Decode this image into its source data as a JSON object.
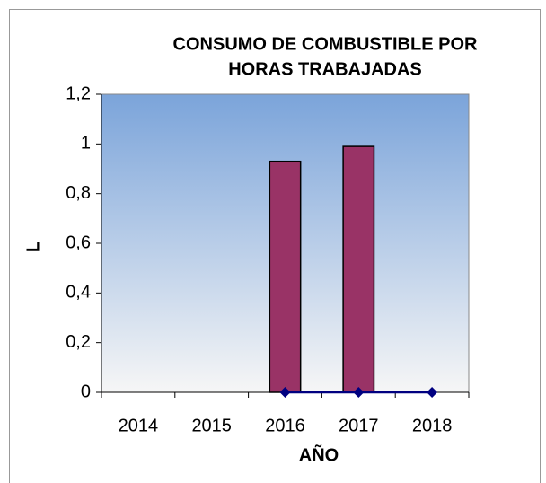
{
  "chart_data": {
    "type": "bar",
    "title": [
      "CONSUMO DE COMBUSTIBLE POR",
      "HORAS TRABAJADAS"
    ],
    "x_label": "AÑO",
    "y_label": "L",
    "categories": [
      "2014",
      "2015",
      "2016",
      "2017",
      "2018"
    ],
    "series": [
      {
        "type": "bar",
        "color": "#993366",
        "values": [
          0,
          0,
          0.93,
          0.99,
          0
        ]
      },
      {
        "type": "line",
        "color": "#000080",
        "values": [
          null,
          null,
          0,
          0,
          0
        ]
      }
    ],
    "ylim": [
      0,
      1.2
    ],
    "yticks": [
      0,
      {
        "value": 0.2,
        "label": "0,2"
      },
      {
        "value": 0.4,
        "label": "0,4"
      },
      {
        "value": 0.6,
        "label": "0,6"
      },
      {
        "value": 0.8,
        "label": "0,8"
      },
      1,
      {
        "value": 1.2,
        "label": "1,2"
      }
    ],
    "grid": false
  }
}
